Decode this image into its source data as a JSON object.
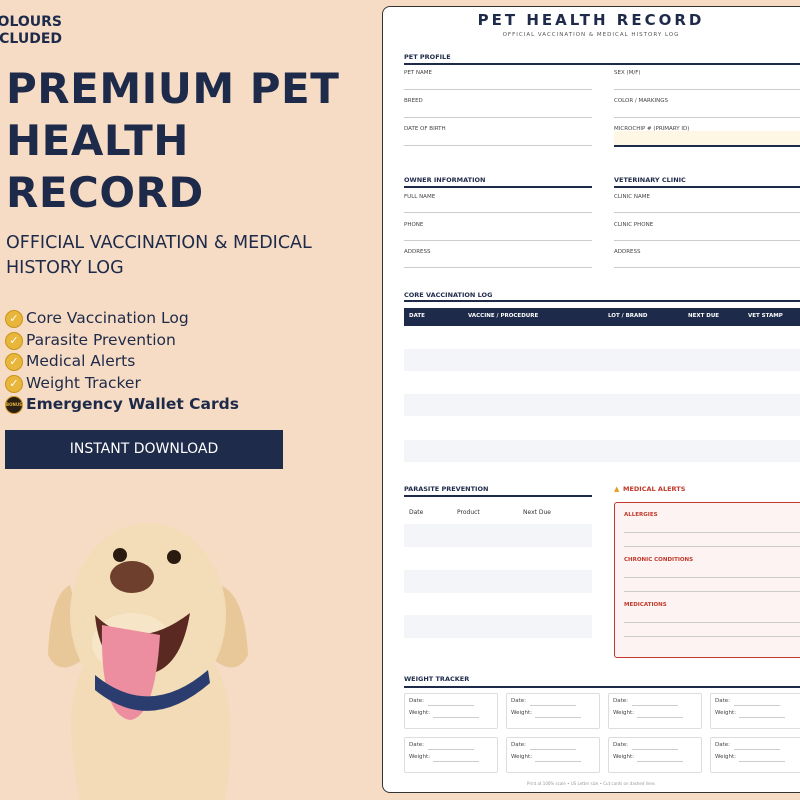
{
  "promo": {
    "badge": [
      "COLOURS",
      "INCLUDED"
    ],
    "title": [
      "PREMIUM PET",
      "HEALTH",
      "RECORD"
    ],
    "subtitle": "OFFICIAL VACCINATION & MEDICAL HISTORY LOG",
    "features": [
      "Core Vaccination Log",
      "Parasite Prevention",
      "Medical Alerts",
      "Weight Tracker",
      "Emergency Wallet Cards"
    ],
    "bonus_label": "BONUS",
    "button": "INSTANT DOWNLOAD"
  },
  "document": {
    "title": "PET HEALTH RECORD",
    "subtitle": "OFFICIAL VACCINATION & MEDICAL HISTORY LOG",
    "pet_profile": {
      "heading": "PET PROFILE",
      "left": [
        "PET NAME",
        "BREED",
        "DATE OF BIRTH"
      ],
      "right": [
        "SEX (M/F)",
        "COLOR / MARKINGS",
        "MICROCHIP # (PRIMARY ID)"
      ]
    },
    "owner": {
      "heading": "OWNER INFORMATION",
      "fields": [
        "FULL NAME",
        "PHONE",
        "ADDRESS"
      ]
    },
    "clinic": {
      "heading": "VETERINARY CLINIC",
      "fields": [
        "CLINIC NAME",
        "CLINIC PHONE",
        "ADDRESS"
      ]
    },
    "vaccination": {
      "heading": "CORE VACCINATION LOG",
      "columns": [
        "DATE",
        "VACCINE / PROCEDURE",
        "LOT / BRAND",
        "NEXT DUE",
        "VET STAMP"
      ]
    },
    "parasite": {
      "heading": "PARASITE PREVENTION",
      "columns": [
        "Date",
        "Product",
        "Next Due"
      ]
    },
    "alerts": {
      "heading": "MEDICAL ALERTS",
      "fields": [
        "ALLERGIES",
        "CHRONIC CONDITIONS",
        "MEDICATIONS"
      ]
    },
    "weight": {
      "heading": "WEIGHT TRACKER",
      "cards": [
        {
          "date": "Date:",
          "weight": "Weight:"
        },
        {
          "date": "Date:",
          "weight": "Weight:"
        },
        {
          "date": "Date:",
          "weight": "Weight:"
        },
        {
          "date": "Date:",
          "weight": "Weight:"
        },
        {
          "date": "Date:",
          "weight": "Weight:"
        },
        {
          "date": "Date:",
          "weight": "Weight:"
        },
        {
          "date": "Date:",
          "weight": "Weight:"
        },
        {
          "date": "Date:",
          "weight": "Weight:"
        }
      ]
    },
    "footer": "Print at 100% scale • US Letter size • Cut cards on dashed lines"
  }
}
